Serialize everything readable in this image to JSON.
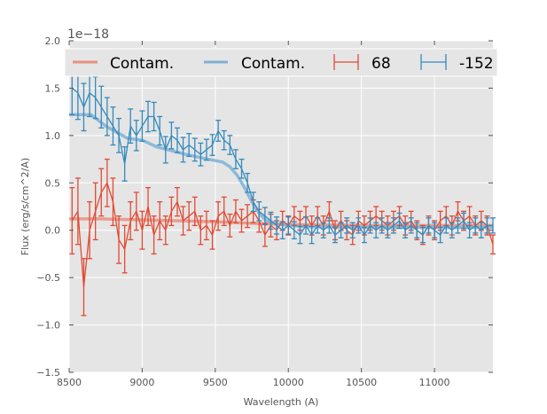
{
  "chart_data": {
    "type": "line",
    "title": "",
    "xlabel": "Wavelength (A)",
    "ylabel": "Flux (erg/s/cm^2/A)",
    "offset_label": "1e−18",
    "xlim": [
      8500,
      11400
    ],
    "ylim": [
      -1.5,
      2.0
    ],
    "xticks": [
      8500,
      9000,
      9500,
      10000,
      10500,
      11000
    ],
    "yticks": [
      -1.5,
      -1.0,
      -0.5,
      0.0,
      0.5,
      1.0,
      1.5,
      2.0
    ],
    "ytick_labels": [
      "−1.5",
      "−1.0",
      "−0.5",
      "0.0",
      "0.5",
      "1.0",
      "1.5",
      "2.0"
    ],
    "grid": true,
    "legend_placement": "top",
    "legend": [
      {
        "label": "Contam.",
        "kind": "line",
        "color": "#E8907F"
      },
      {
        "label": "Contam.",
        "kind": "line",
        "color": "#7FB1D6"
      },
      {
        "label": "68",
        "kind": "errorbar",
        "color": "#E24A33"
      },
      {
        "label": "-152",
        "kind": "errorbar",
        "color": "#348ABD"
      }
    ],
    "contam": [
      {
        "name": "Contam. (68)",
        "color": "#E8907F",
        "x": [
          8500,
          8700,
          9000,
          9500,
          9800,
          10000,
          10500,
          11000,
          11400
        ],
        "y": [
          0.12,
          0.12,
          0.11,
          0.09,
          0.07,
          0.06,
          0.05,
          0.05,
          0.05
        ]
      },
      {
        "name": "Contam. (-152)",
        "color": "#7FB1D6",
        "x": [
          8500,
          8650,
          8750,
          8900,
          9000,
          9100,
          9300,
          9450,
          9550,
          9600,
          9650,
          9700,
          9750,
          9800,
          9850,
          9950,
          10100,
          10500,
          11000,
          11400
        ],
        "y": [
          1.22,
          1.22,
          1.1,
          0.97,
          0.95,
          0.88,
          0.8,
          0.75,
          0.72,
          0.67,
          0.58,
          0.45,
          0.3,
          0.18,
          0.1,
          0.06,
          0.04,
          0.03,
          0.03,
          0.03
        ]
      }
    ],
    "x": [
      8520,
      8560,
      8600,
      8640,
      8680,
      8720,
      8760,
      8800,
      8840,
      8880,
      8920,
      8960,
      9000,
      9040,
      9080,
      9120,
      9160,
      9200,
      9240,
      9280,
      9320,
      9360,
      9400,
      9440,
      9480,
      9520,
      9560,
      9600,
      9640,
      9680,
      9720,
      9760,
      9800,
      9840,
      9880,
      9920,
      9960,
      10000,
      10040,
      10080,
      10120,
      10160,
      10200,
      10240,
      10280,
      10320,
      10360,
      10400,
      10440,
      10480,
      10520,
      10560,
      10600,
      10640,
      10680,
      10720,
      10760,
      10800,
      10840,
      10880,
      10920,
      10960,
      11000,
      11040,
      11080,
      11120,
      11160,
      11200,
      11240,
      11280,
      11320,
      11360,
      11400
    ],
    "series": [
      {
        "name": "68",
        "color": "#E24A33",
        "values": [
          0.1,
          0.2,
          -0.6,
          0.0,
          0.2,
          0.4,
          0.5,
          0.3,
          -0.1,
          -0.2,
          0.1,
          0.2,
          0.0,
          0.25,
          -0.05,
          0.1,
          0.0,
          0.2,
          0.3,
          0.1,
          0.15,
          0.2,
          0.0,
          0.05,
          -0.05,
          0.15,
          0.2,
          0.05,
          0.2,
          0.1,
          0.15,
          0.2,
          0.1,
          -0.05,
          0.05,
          0.0,
          0.1,
          0.05,
          0.15,
          0.1,
          0.15,
          0.05,
          0.15,
          0.05,
          0.2,
          0.0,
          0.1,
          0.0,
          -0.05,
          0.1,
          0.05,
          0.1,
          0.15,
          0.1,
          0.05,
          0.1,
          0.15,
          0.05,
          0.1,
          0.0,
          -0.05,
          0.05,
          0.0,
          0.1,
          0.15,
          0.05,
          0.2,
          0.1,
          0.15,
          0.05,
          0.1,
          0.05,
          -0.15
        ],
        "errors": [
          0.35,
          0.35,
          0.3,
          0.3,
          0.3,
          0.25,
          0.25,
          0.25,
          0.25,
          0.25,
          0.2,
          0.2,
          0.2,
          0.2,
          0.2,
          0.2,
          0.15,
          0.15,
          0.15,
          0.15,
          0.15,
          0.15,
          0.15,
          0.15,
          0.15,
          0.15,
          0.15,
          0.12,
          0.12,
          0.12,
          0.12,
          0.12,
          0.12,
          0.12,
          0.12,
          0.1,
          0.1,
          0.1,
          0.1,
          0.1,
          0.1,
          0.1,
          0.1,
          0.1,
          0.1,
          0.1,
          0.1,
          0.1,
          0.1,
          0.1,
          0.1,
          0.1,
          0.1,
          0.1,
          0.1,
          0.1,
          0.1,
          0.1,
          0.1,
          0.1,
          0.1,
          0.1,
          0.1,
          0.1,
          0.1,
          0.1,
          0.1,
          0.1,
          0.1,
          0.1,
          0.1,
          0.1,
          0.1
        ]
      },
      {
        "name": "-152",
        "color": "#348ABD",
        "values": [
          1.5,
          1.45,
          1.3,
          1.45,
          1.4,
          1.3,
          1.2,
          1.1,
          1.0,
          0.7,
          1.1,
          1.0,
          1.1,
          1.2,
          1.2,
          1.05,
          0.85,
          1.0,
          0.95,
          0.85,
          0.9,
          0.85,
          0.8,
          0.85,
          0.9,
          1.05,
          0.95,
          0.9,
          0.75,
          0.65,
          0.5,
          0.3,
          0.2,
          0.15,
          0.1,
          0.05,
          0.0,
          0.05,
          0.0,
          -0.05,
          0.05,
          -0.05,
          0.05,
          0.0,
          0.05,
          -0.05,
          0.0,
          0.05,
          0.0,
          0.05,
          -0.05,
          0.05,
          0.0,
          0.05,
          0.0,
          0.05,
          0.1,
          0.0,
          0.05,
          0.0,
          -0.05,
          0.05,
          0.0,
          -0.05,
          0.05,
          0.0,
          0.05,
          0.1,
          0.0,
          0.05,
          0.0,
          0.05,
          0.05
        ],
        "errors": [
          0.28,
          0.28,
          0.25,
          0.25,
          0.22,
          0.22,
          0.2,
          0.2,
          0.18,
          0.18,
          0.18,
          0.16,
          0.16,
          0.16,
          0.15,
          0.15,
          0.14,
          0.14,
          0.13,
          0.13,
          0.12,
          0.12,
          0.12,
          0.11,
          0.11,
          0.11,
          0.1,
          0.1,
          0.1,
          0.1,
          0.1,
          0.1,
          0.1,
          0.09,
          0.09,
          0.09,
          0.09,
          0.09,
          0.09,
          0.09,
          0.09,
          0.09,
          0.08,
          0.08,
          0.08,
          0.08,
          0.08,
          0.08,
          0.08,
          0.08,
          0.08,
          0.08,
          0.08,
          0.08,
          0.08,
          0.08,
          0.08,
          0.08,
          0.08,
          0.08,
          0.08,
          0.08,
          0.08,
          0.08,
          0.08,
          0.08,
          0.08,
          0.08,
          0.08,
          0.08,
          0.08,
          0.08,
          0.08
        ]
      }
    ]
  }
}
